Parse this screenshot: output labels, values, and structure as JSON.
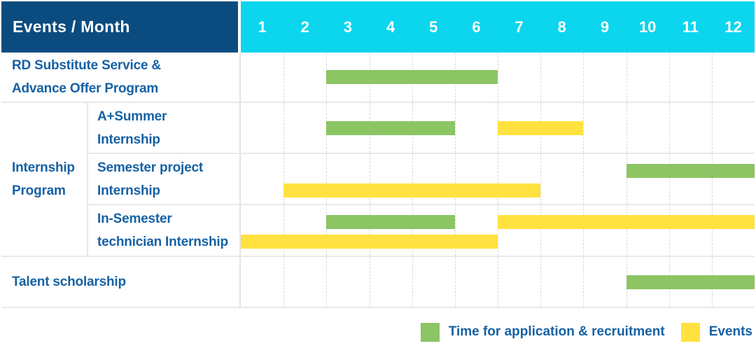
{
  "header": {
    "label": "Events / Month",
    "months": [
      "1",
      "2",
      "3",
      "4",
      "5",
      "6",
      "7",
      "8",
      "9",
      "10",
      "11",
      "12"
    ]
  },
  "table": {
    "group_label_lines": [
      "Internship",
      "Program"
    ],
    "rows": [
      {
        "label_lines": [
          "RD Substitute Service &",
          "Advance Offer Program"
        ]
      },
      {
        "label_lines": [
          "A+Summer",
          "Internship"
        ]
      },
      {
        "label_lines": [
          "Semester project",
          "Internship"
        ]
      },
      {
        "label_lines": [
          "In-Semester",
          "technician Internship"
        ]
      },
      {
        "label_lines": [
          "Talent scholarship",
          ""
        ]
      }
    ]
  },
  "legend": {
    "application_label": "Time for application & recruitment",
    "events_label": "Events"
  },
  "colors": {
    "header_navy": "#0b4c80",
    "month_cyan": "#0cd5ee",
    "bar_green": "#8cc564",
    "bar_yellow": "#ffe23f",
    "text_blue": "#1661a4"
  },
  "chart_data": {
    "type": "gantt",
    "x_unit": "month",
    "x_range": [
      1,
      12
    ],
    "legend": {
      "application": "Time for application & recruitment",
      "event": "Events"
    },
    "rows": [
      {
        "group": null,
        "task": "RD Substitute Service & Advance Offer Program",
        "bars": [
          {
            "type": "application",
            "start_month": 3,
            "end_month": 6,
            "lane": "single"
          }
        ]
      },
      {
        "group": "Internship Program",
        "task": "A+Summer Internship",
        "bars": [
          {
            "type": "application",
            "start_month": 3,
            "end_month": 5,
            "lane": "single"
          },
          {
            "type": "event",
            "start_month": 7,
            "end_month": 8,
            "lane": "single"
          }
        ]
      },
      {
        "group": "Internship Program",
        "task": "Semester project Internship",
        "bars": [
          {
            "type": "application",
            "start_month": 10,
            "end_month": 12,
            "lane": "top"
          },
          {
            "type": "event",
            "start_month": 2,
            "end_month": 7,
            "lane": "bottom"
          }
        ]
      },
      {
        "group": "Internship Program",
        "task": "In-Semester technician Internship",
        "bars": [
          {
            "type": "application",
            "start_month": 3,
            "end_month": 5,
            "lane": "top"
          },
          {
            "type": "event",
            "start_month": 7,
            "end_month": 12,
            "lane": "top"
          },
          {
            "type": "event",
            "start_month": 1,
            "end_month": 6,
            "lane": "bottom"
          }
        ]
      },
      {
        "group": null,
        "task": "Talent scholarship",
        "bars": [
          {
            "type": "application",
            "start_month": 10,
            "end_month": 12,
            "lane": "single"
          }
        ]
      }
    ]
  }
}
